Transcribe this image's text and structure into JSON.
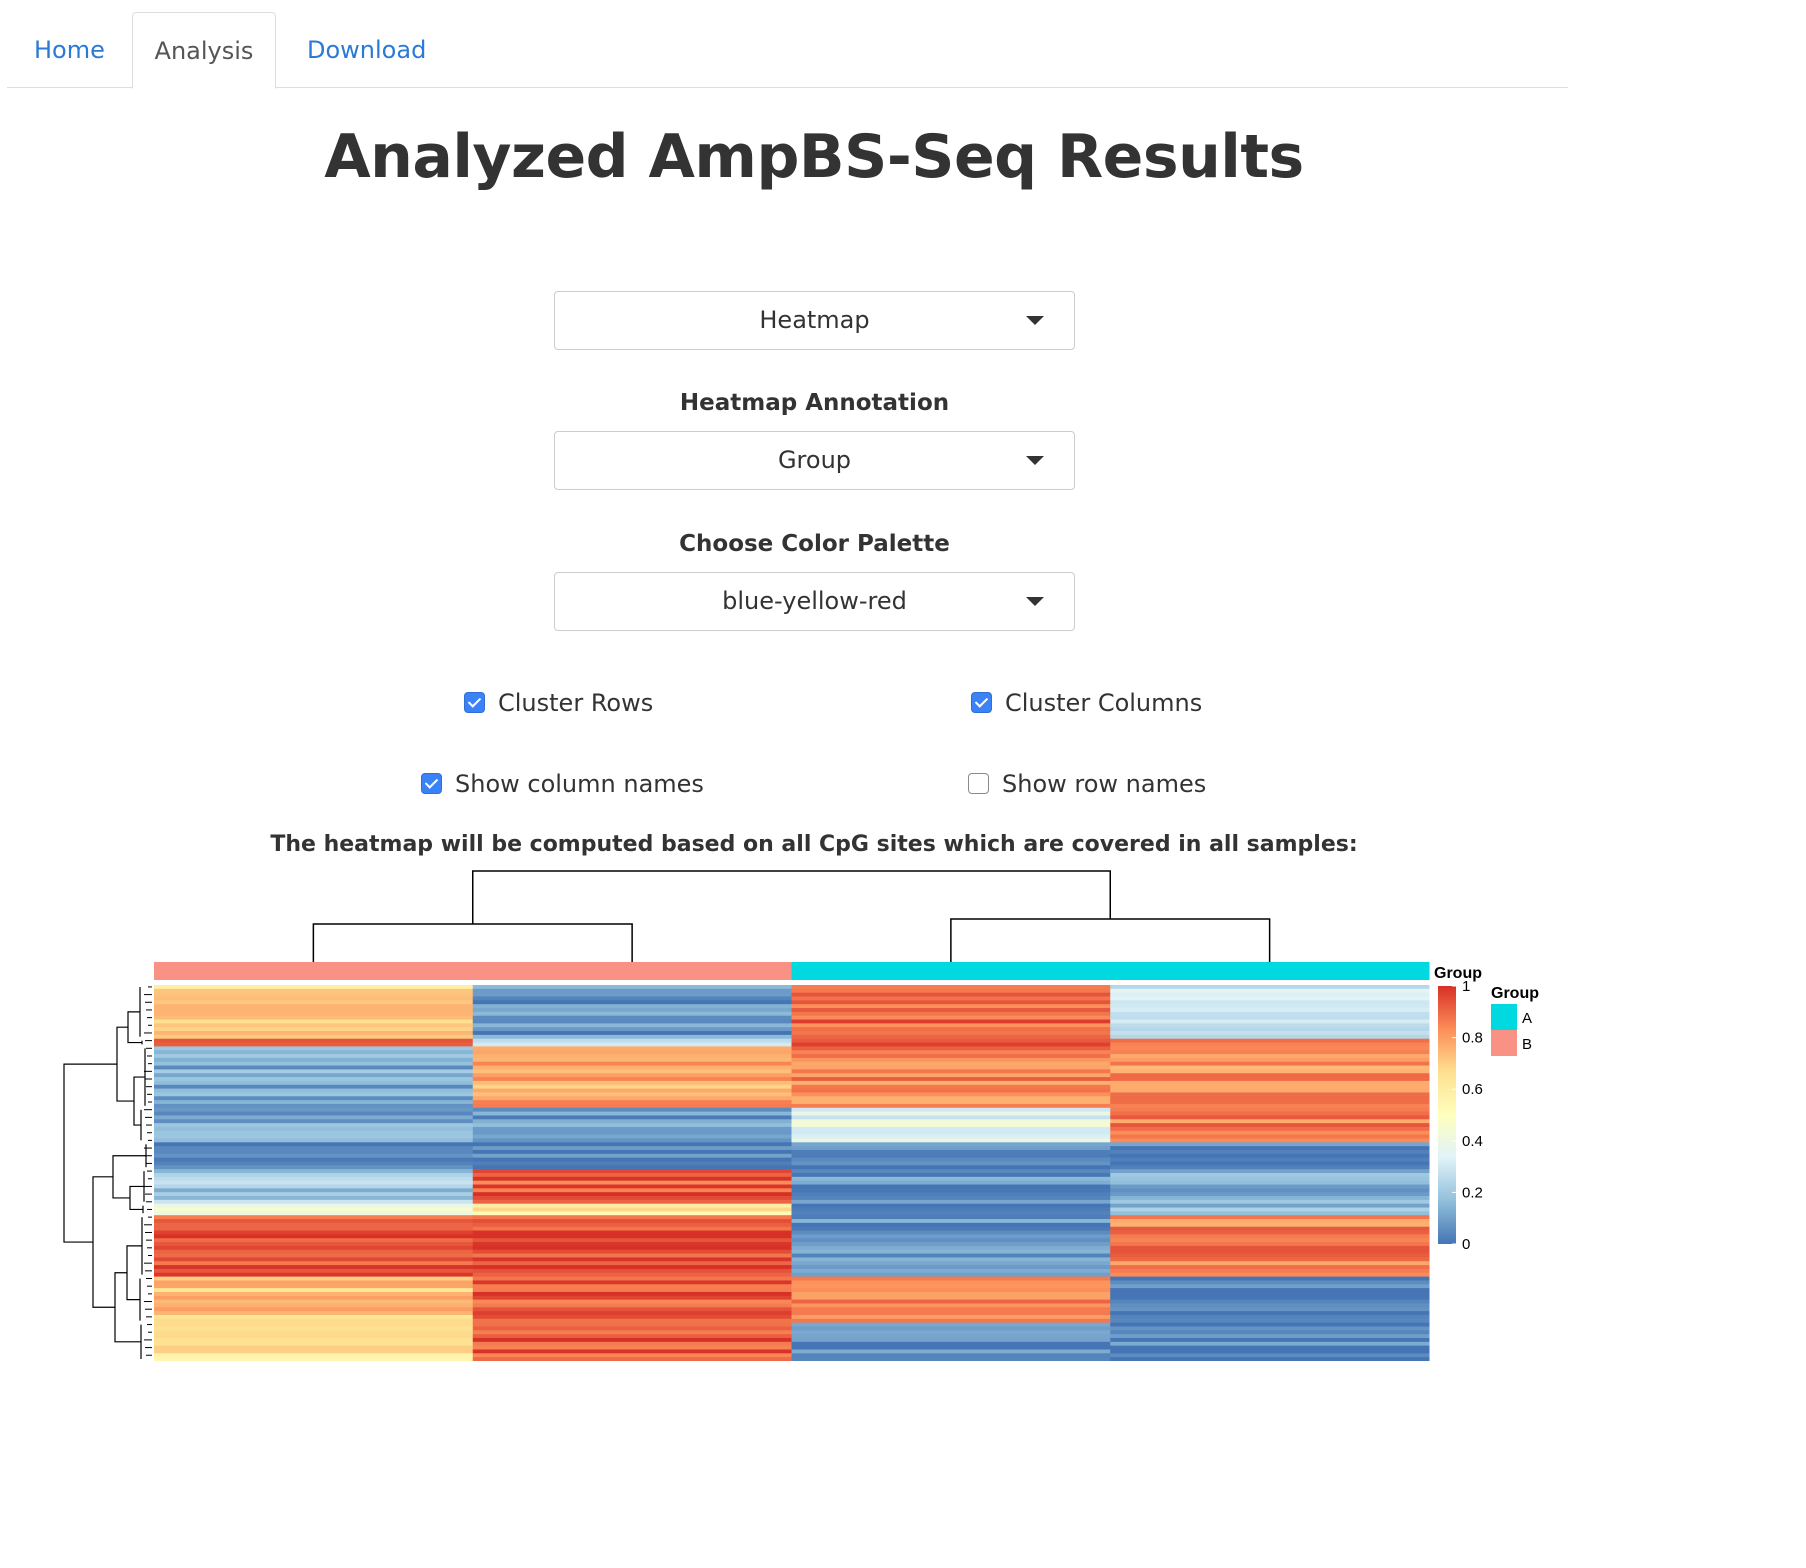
{
  "tabs": [
    {
      "label": "Home",
      "active": false
    },
    {
      "label": "Analysis",
      "active": true
    },
    {
      "label": "Download",
      "active": false
    }
  ],
  "page_title": "Analyzed AmpBS-Seq Results",
  "controls": {
    "plot_type": {
      "value": "Heatmap"
    },
    "annotation": {
      "label": "Heatmap Annotation",
      "value": "Group"
    },
    "palette": {
      "label": "Choose Color Palette",
      "value": "blue-yellow-red"
    },
    "checkboxes": {
      "cluster_rows": {
        "label": "Cluster Rows",
        "checked": true
      },
      "cluster_columns": {
        "label": "Cluster Columns",
        "checked": true
      },
      "show_column_names": {
        "label": "Show column names",
        "checked": true
      },
      "show_row_names": {
        "label": "Show row names",
        "checked": false
      }
    }
  },
  "note": "The heatmap will be computed based on all CpG sites which are covered in all samples:",
  "chart_data": {
    "type": "heatmap",
    "palette": [
      "#4575b4",
      "#91bfdb",
      "#e0f3f8",
      "#ffffbf",
      "#fee090",
      "#fc8d59",
      "#d73027"
    ],
    "columns": [
      {
        "group": "B"
      },
      {
        "group": "B"
      },
      {
        "group": "A"
      },
      {
        "group": "A"
      }
    ],
    "row_blocks": [
      {
        "rows": 14,
        "values": [
          0.68,
          0.08,
          0.9,
          0.3
        ]
      },
      {
        "rows": 2,
        "values": [
          0.95,
          0.3,
          0.95,
          0.9
        ]
      },
      {
        "rows": 16,
        "values": [
          0.12,
          0.78,
          0.85,
          0.82
        ]
      },
      {
        "rows": 9,
        "values": [
          0.12,
          0.1,
          0.35,
          0.85
        ]
      },
      {
        "rows": 7,
        "values": [
          0.02,
          0.02,
          0.02,
          0.02
        ]
      },
      {
        "rows": 9,
        "values": [
          0.2,
          0.92,
          0.08,
          0.15
        ]
      },
      {
        "rows": 3,
        "values": [
          0.4,
          0.6,
          0.08,
          0.15
        ]
      },
      {
        "rows": 16,
        "values": [
          0.92,
          0.95,
          0.06,
          0.85
        ]
      },
      {
        "rows": 12,
        "values": [
          0.72,
          0.93,
          0.85,
          0.02
        ]
      },
      {
        "rows": 10,
        "values": [
          0.62,
          0.93,
          0.04,
          0.04
        ]
      }
    ],
    "color_legend": {
      "title": "Group",
      "min": 0,
      "max": 1,
      "ticks": [
        0,
        0.2,
        0.4,
        0.6,
        0.8,
        1
      ]
    },
    "group_legend": {
      "title": "Group",
      "items": [
        {
          "name": "A",
          "color": "#00d9e0"
        },
        {
          "name": "B",
          "color": "#fa9185"
        }
      ]
    }
  }
}
